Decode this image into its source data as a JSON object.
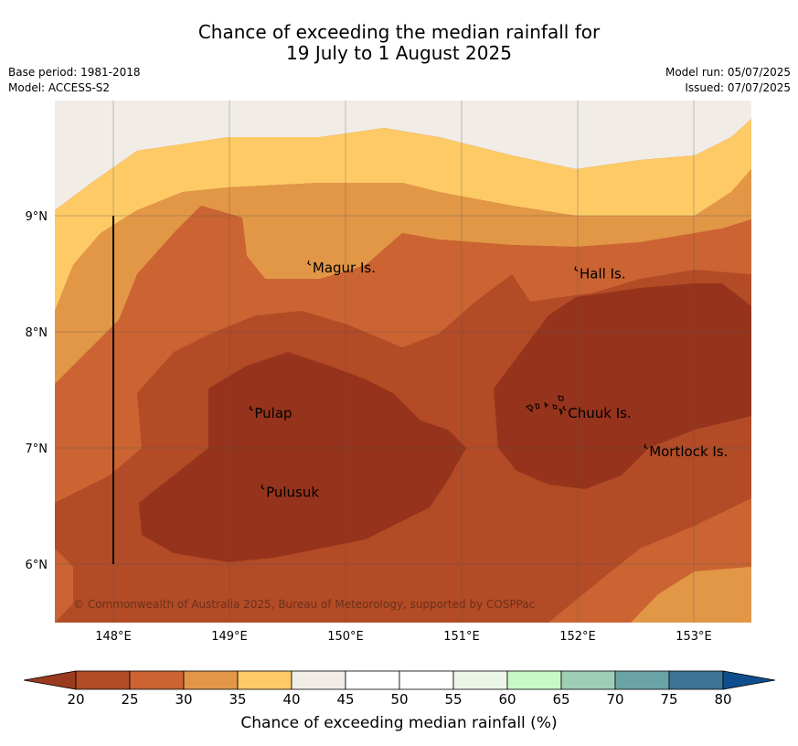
{
  "header": {
    "title_line1": "Chance of exceeding the median rainfall for",
    "title_line2": "19 July to 1 August 2025",
    "base_period": "Base period: 1981-2018",
    "model": "Model: ACCESS-S2",
    "model_run": "Model run: 05/07/2025",
    "issued": "Issued: 07/07/2025"
  },
  "map": {
    "lon_ticks": [
      "148°E",
      "149°E",
      "150°E",
      "151°E",
      "152°E",
      "153°E"
    ],
    "lat_ticks": [
      "9°N",
      "8°N",
      "7°N",
      "6°N"
    ],
    "places": [
      {
        "name": "Magur Is.",
        "lon": 149.7,
        "lat": 8.55
      },
      {
        "name": "Hall Is.",
        "lon": 152.0,
        "lat": 8.5
      },
      {
        "name": "Pulap",
        "lon": 149.2,
        "lat": 7.3
      },
      {
        "name": "Chuuk Is.",
        "lon": 151.9,
        "lat": 7.3
      },
      {
        "name": "Mortlock Is.",
        "lon": 152.6,
        "lat": 6.97
      },
      {
        "name": "Pulusuk",
        "lon": 149.3,
        "lat": 6.62
      }
    ],
    "copyright": "© Commonwealth of Australia 2025, Bureau of Meteorology, supported by COSPPac"
  },
  "colorbar": {
    "title": "Chance of exceeding median rainfall (%)",
    "ticks": [
      "20",
      "25",
      "30",
      "35",
      "40",
      "45",
      "50",
      "55",
      "60",
      "65",
      "70",
      "75",
      "80"
    ],
    "under_color": "#9a3a1e",
    "over_color": "#0f4e8c",
    "colors": [
      "#b24b26",
      "#cb6432",
      "#e29747",
      "#fdca66",
      "#f1ede6",
      "#ffffff",
      "#ffffff",
      "#ebf5e8",
      "#c7f8c7",
      "#9ecfb6",
      "#6aa3a6",
      "#3e7496"
    ]
  },
  "chart_data": {
    "type": "heatmap",
    "title": "Chance of exceeding the median rainfall for 19 July to 1 August 2025",
    "xlim": [
      147.5,
      153.5
    ],
    "ylim": [
      5.5,
      10.0
    ],
    "x_ticks": [
      148,
      149,
      150,
      151,
      152,
      153
    ],
    "y_ticks": [
      6,
      7,
      8,
      9
    ],
    "levels": [
      20,
      25,
      30,
      35,
      40,
      45,
      50,
      55,
      60,
      65,
      70,
      75,
      80
    ],
    "regions": [
      {
        "range": "40-45",
        "description": "northern fringe (lat > ~9.5 west, > ~9.4 east)"
      },
      {
        "range": "35-40",
        "description": "band along north ~9.0-9.7N"
      },
      {
        "range": "30-35",
        "description": "band ~8.6-9.5N, incl. Magur Is. area; also SE corner near 153E 5.6N"
      },
      {
        "range": "25-30",
        "description": "broad band ~8-9N and western margin"
      },
      {
        "range": "20-25",
        "description": "central and southern area ~5.8-8.5N"
      },
      {
        "range": "<20",
        "description": "cores around Pulap/Pulusuk (~6-7.8N, 148.3-151N) and Chuuk/Hall (~6.7-8.4N, 151.3-153.5N)"
      }
    ]
  }
}
